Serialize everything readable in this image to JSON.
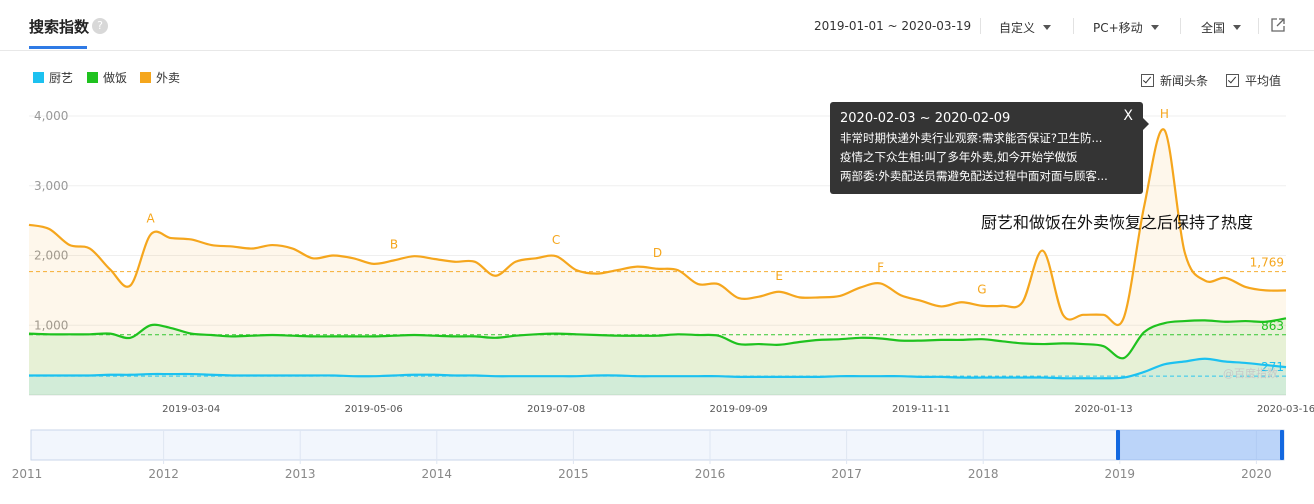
{
  "header": {
    "title": "搜索指数",
    "help_icon": "question-icon",
    "date_range": "2019-01-01 ~ 2020-03-19",
    "custom_label": "自定义",
    "device_label": "PC+移动",
    "region_label": "全国",
    "share_icon": "external-link-icon"
  },
  "legend": [
    {
      "label": "厨艺",
      "color": "#1cc1f0"
    },
    {
      "label": "做饭",
      "color": "#1fc21f"
    },
    {
      "label": "外卖",
      "color": "#f5a61d"
    }
  ],
  "options": [
    {
      "label": "新闻头条",
      "checked": true
    },
    {
      "label": "平均值",
      "checked": true
    }
  ],
  "watermark": "@百度指数",
  "tooltip": {
    "date": "2020-02-03 ~ 2020-02-09",
    "close": "X",
    "items": [
      "非常时期快递外卖行业观察:需求能否保证?卫生防...",
      "疫情之下众生相:叫了多年外卖,如今开始学做饭",
      "两部委:外卖配送员需避免配送过程中面对面与顾客..."
    ]
  },
  "annotation": "厨艺和做饭在外卖恢复之后保持了热度",
  "chart_data": {
    "type": "line",
    "title": "",
    "ylim": [
      0,
      4000
    ],
    "y_ticks": [
      "4,000",
      "3,000",
      "2,000",
      "1,000"
    ],
    "x_tick_labels": [
      "2019-03-04",
      "2019-05-06",
      "2019-07-08",
      "2019-09-09",
      "2019-11-11",
      "2020-01-13",
      "2020-03-16"
    ],
    "grid": true,
    "legend_position": "top-left",
    "x": [
      "2019-01-07",
      "2019-01-14",
      "2019-01-21",
      "2019-01-28",
      "2019-02-04",
      "2019-02-11",
      "2019-02-18",
      "2019-02-25",
      "2019-03-04",
      "2019-03-11",
      "2019-03-18",
      "2019-03-25",
      "2019-04-01",
      "2019-04-08",
      "2019-04-15",
      "2019-04-22",
      "2019-04-29",
      "2019-05-06",
      "2019-05-13",
      "2019-05-20",
      "2019-05-27",
      "2019-06-03",
      "2019-06-10",
      "2019-06-17",
      "2019-06-24",
      "2019-07-01",
      "2019-07-08",
      "2019-07-15",
      "2019-07-22",
      "2019-07-29",
      "2019-08-05",
      "2019-08-12",
      "2019-08-19",
      "2019-08-26",
      "2019-09-02",
      "2019-09-09",
      "2019-09-16",
      "2019-09-23",
      "2019-09-30",
      "2019-10-07",
      "2019-10-14",
      "2019-10-21",
      "2019-10-28",
      "2019-11-04",
      "2019-11-11",
      "2019-11-18",
      "2019-11-25",
      "2019-12-02",
      "2019-12-09",
      "2019-12-16",
      "2019-12-23",
      "2019-12-30",
      "2020-01-06",
      "2020-01-13",
      "2020-01-20",
      "2020-01-27",
      "2020-02-03",
      "2020-02-10",
      "2020-02-17",
      "2020-02-24",
      "2020-03-02",
      "2020-03-09",
      "2020-03-16"
    ],
    "series": [
      {
        "name": "外卖",
        "color": "#f5a61d",
        "average": 1769,
        "average_label": "1,769",
        "values": [
          2440,
          2380,
          2150,
          2100,
          1800,
          1570,
          2300,
          2250,
          2230,
          2150,
          2130,
          2100,
          2150,
          2100,
          1960,
          2000,
          1960,
          1880,
          1930,
          1990,
          1950,
          1910,
          1910,
          1710,
          1910,
          1960,
          1990,
          1790,
          1740,
          1790,
          1840,
          1810,
          1790,
          1590,
          1590,
          1390,
          1410,
          1480,
          1400,
          1400,
          1420,
          1540,
          1600,
          1430,
          1350,
          1270,
          1330,
          1280,
          1280,
          1330,
          2070,
          1150,
          1150,
          1150,
          1110,
          2700,
          3800,
          2050,
          1640,
          1680,
          1550,
          1500,
          1500
        ]
      },
      {
        "name": "做饭",
        "color": "#1fc21f",
        "average": 863,
        "average_label": "863",
        "values": [
          880,
          870,
          870,
          870,
          880,
          820,
          1000,
          960,
          880,
          860,
          840,
          850,
          860,
          850,
          840,
          840,
          840,
          840,
          850,
          860,
          850,
          840,
          840,
          820,
          850,
          870,
          880,
          870,
          860,
          850,
          850,
          850,
          870,
          860,
          850,
          730,
          730,
          720,
          760,
          790,
          800,
          820,
          810,
          780,
          780,
          790,
          790,
          800,
          770,
          740,
          730,
          740,
          730,
          700,
          530,
          900,
          1030,
          1060,
          1070,
          1050,
          1060,
          1050,
          1100
        ]
      },
      {
        "name": "厨艺",
        "color": "#1cc1f0",
        "average": 271,
        "average_label": "271",
        "values": [
          280,
          280,
          280,
          280,
          290,
          290,
          300,
          300,
          300,
          290,
          280,
          280,
          280,
          280,
          280,
          280,
          270,
          270,
          280,
          290,
          290,
          280,
          280,
          270,
          270,
          270,
          270,
          270,
          280,
          280,
          270,
          270,
          270,
          270,
          270,
          260,
          260,
          260,
          260,
          260,
          270,
          270,
          270,
          270,
          260,
          260,
          250,
          250,
          250,
          250,
          250,
          240,
          240,
          240,
          250,
          330,
          440,
          480,
          520,
          480,
          460,
          430,
          400
        ]
      }
    ],
    "events": [
      {
        "label": "A",
        "x": "2019-02-18",
        "y": 2300
      },
      {
        "label": "B",
        "x": "2019-05-13",
        "y": 1930
      },
      {
        "label": "C",
        "x": "2019-07-08",
        "y": 1990
      },
      {
        "label": "D",
        "x": "2019-08-12",
        "y": 1810
      },
      {
        "label": "E",
        "x": "2019-09-23",
        "y": 1480
      },
      {
        "label": "F",
        "x": "2019-10-28",
        "y": 1600
      },
      {
        "label": "G",
        "x": "2019-12-02",
        "y": 1280
      },
      {
        "label": "H",
        "x": "2020-02-03",
        "y": 3800
      }
    ],
    "navigator": {
      "years": [
        "2011",
        "2012",
        "2013",
        "2014",
        "2015",
        "2016",
        "2017",
        "2018",
        "2019",
        "2020"
      ],
      "selection": "2019 - 2020"
    }
  }
}
